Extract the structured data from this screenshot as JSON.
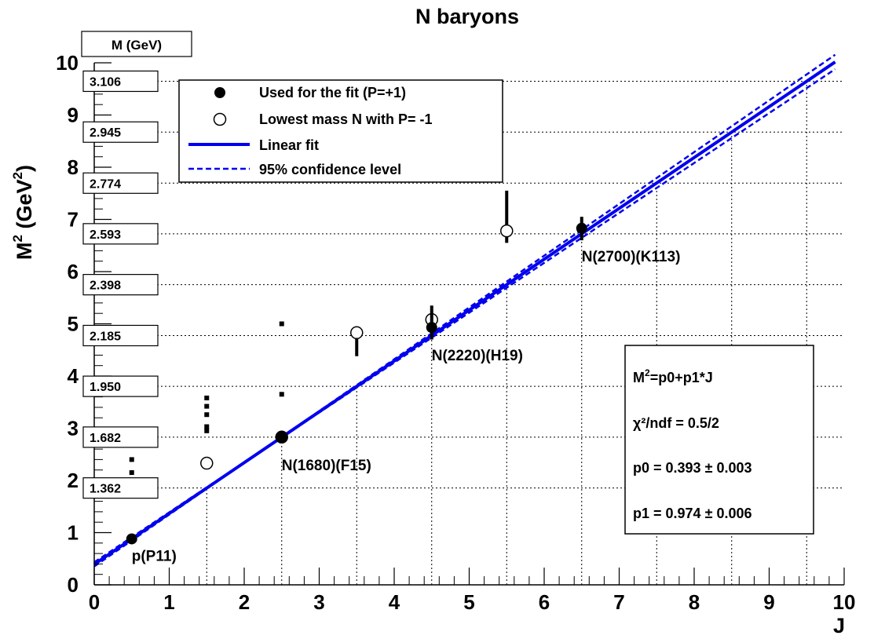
{
  "chart_data": {
    "type": "scatter",
    "title": "N baryons",
    "xlabel": "J",
    "ylabel_main": "M",
    "ylabel_sup": "2",
    "ylabel_rest": " (GeV",
    "ylabel_sup2": "2",
    "ylabel_end": ")",
    "xlim": [
      0,
      10
    ],
    "ylim": [
      0,
      10
    ],
    "xticks": [
      "0",
      "1",
      "2",
      "3",
      "4",
      "5",
      "6",
      "7",
      "8",
      "9",
      "10"
    ],
    "yticks": [
      "0",
      "1",
      "2",
      "3",
      "4",
      "5",
      "6",
      "7",
      "8",
      "9",
      "10"
    ],
    "mass_axis_header": "M (GeV)",
    "mass_labels": [
      {
        "value": "1.362",
        "m2": 1.855
      },
      {
        "value": "1.682",
        "m2": 2.829
      },
      {
        "value": "1.950",
        "m2": 3.803
      },
      {
        "value": "2.185",
        "m2": 4.775
      },
      {
        "value": "2.398",
        "m2": 5.75
      },
      {
        "value": "2.593",
        "m2": 6.724
      },
      {
        "value": "2.774",
        "m2": 7.695
      },
      {
        "value": "2.945",
        "m2": 8.673
      },
      {
        "value": "3.106",
        "m2": 9.647
      }
    ],
    "series": [
      {
        "name": "Used for the fit (P=+1)",
        "marker": "filled-circle",
        "points": [
          {
            "x": 0.5,
            "y": 0.88,
            "ylo": 0.88,
            "yhi": 0.88,
            "label": "p(P11)"
          },
          {
            "x": 2.5,
            "y": 2.83,
            "ylo": 2.78,
            "yhi": 2.88,
            "label": "N(1680)(F15)"
          },
          {
            "x": 4.5,
            "y": 4.93,
            "ylo": 4.7,
            "yhi": 5.35,
            "label": "N(2220)(H19)"
          },
          {
            "x": 6.5,
            "y": 6.83,
            "ylo": 6.6,
            "yhi": 7.05,
            "label": "N(2700)(K113)"
          }
        ]
      },
      {
        "name": "Lowest mass N with P= -1",
        "marker": "open-circle",
        "points": [
          {
            "x": 1.5,
            "y": 2.33,
            "ylo": 2.33,
            "yhi": 2.33
          },
          {
            "x": 2.5,
            "y": 2.83,
            "ylo": 2.83,
            "yhi": 2.83
          },
          {
            "x": 3.5,
            "y": 4.83,
            "ylo": 4.38,
            "yhi": 4.83
          },
          {
            "x": 4.5,
            "y": 5.08,
            "ylo": 5.08,
            "yhi": 5.08
          },
          {
            "x": 5.5,
            "y": 6.78,
            "ylo": 6.55,
            "yhi": 7.55
          }
        ]
      }
    ],
    "extra_marks": [
      {
        "x": 0.5,
        "y": 2.15
      },
      {
        "x": 0.5,
        "y": 2.4
      },
      {
        "x": 1.5,
        "y": 2.95
      },
      {
        "x": 1.5,
        "y": 3.03
      },
      {
        "x": 1.5,
        "y": 3.26
      },
      {
        "x": 1.5,
        "y": 3.42
      },
      {
        "x": 1.5,
        "y": 3.58
      },
      {
        "x": 2.5,
        "y": 3.65
      },
      {
        "x": 2.5,
        "y": 5.0
      }
    ],
    "fit": {
      "name": "Linear fit",
      "p0": 0.393,
      "p1": 0.974,
      "x_range": [
        0,
        9.88
      ]
    },
    "confidence_band": {
      "name": "95% confidence level",
      "upper": {
        "p0": 0.353,
        "p1": 0.992
      },
      "lower": {
        "p0": 0.433,
        "p1": 0.956
      }
    },
    "grid_x": [
      1.5,
      2.5,
      3.5,
      4.5,
      5.5,
      6.5,
      7.5,
      8.5,
      9.5
    ],
    "legend_placement": "top-left",
    "fit_box": {
      "formula_main": "M",
      "formula_sup": "2",
      "formula_rest": "=p0+p1*J",
      "chi2": "χ²/ndf =  0.5/2",
      "p0": "p0 = 0.393 ± 0.003",
      "p1": "p1 = 0.974 ± 0.006"
    }
  }
}
